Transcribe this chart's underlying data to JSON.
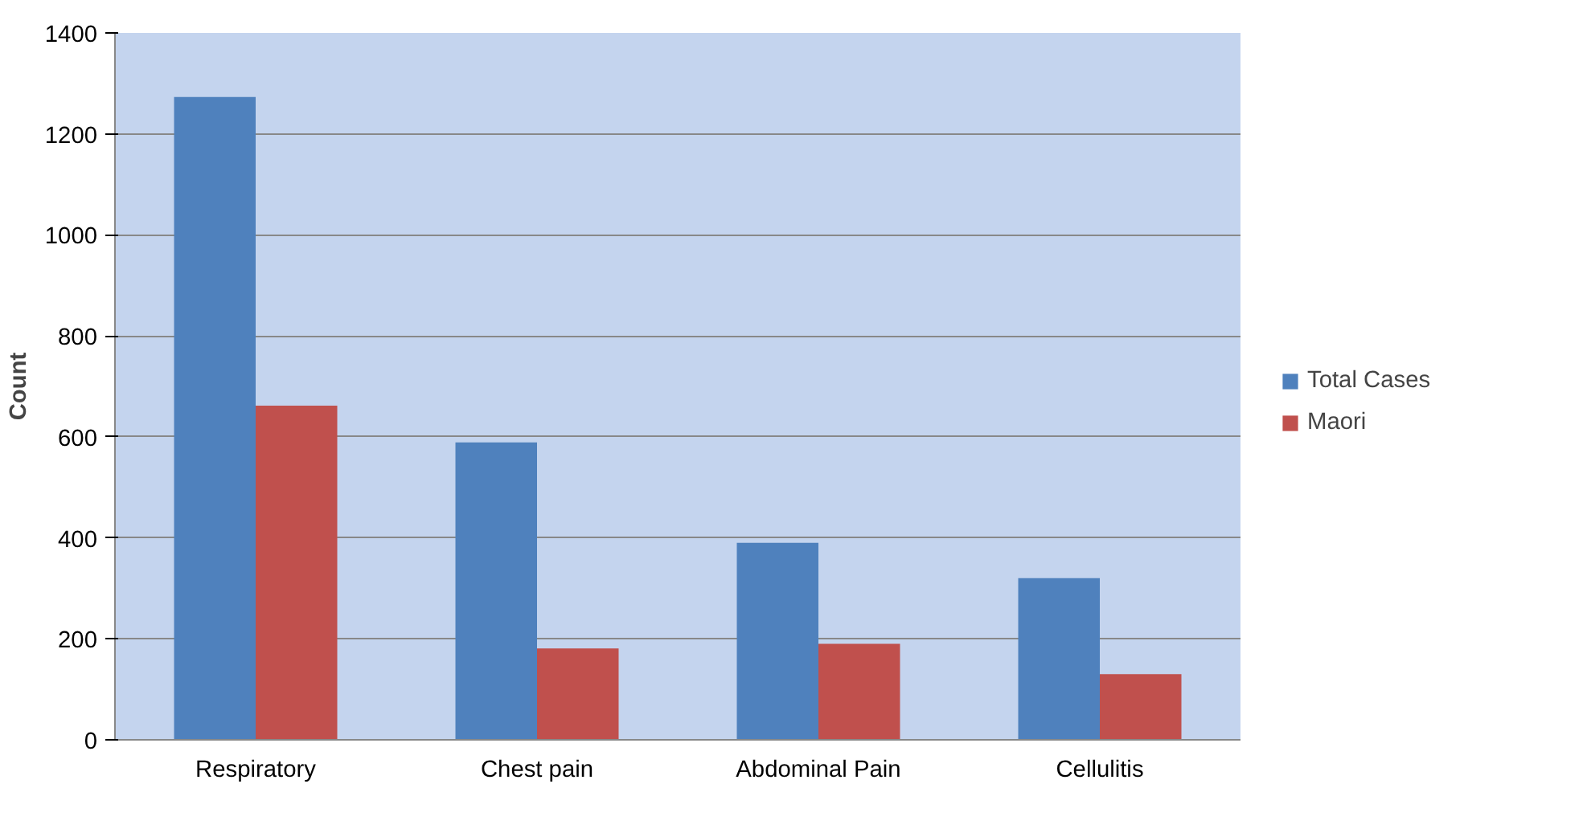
{
  "chart_data": {
    "type": "bar",
    "ylabel": "Count",
    "categories": [
      "Respiratory",
      "Chest pain",
      "Abdominal Pain",
      "Cellulitis"
    ],
    "series": [
      {
        "name": "Total Cases",
        "color": "#4f81bd",
        "values": [
          1273,
          589,
          390,
          320
        ]
      },
      {
        "name": "Maori",
        "color": "#c0504d",
        "values": [
          662,
          181,
          190,
          130
        ]
      }
    ],
    "ylim": [
      0,
      1400
    ],
    "yticks": [
      0,
      200,
      400,
      600,
      800,
      1000,
      1200,
      1400
    ],
    "grid": "y",
    "legend": "right"
  }
}
